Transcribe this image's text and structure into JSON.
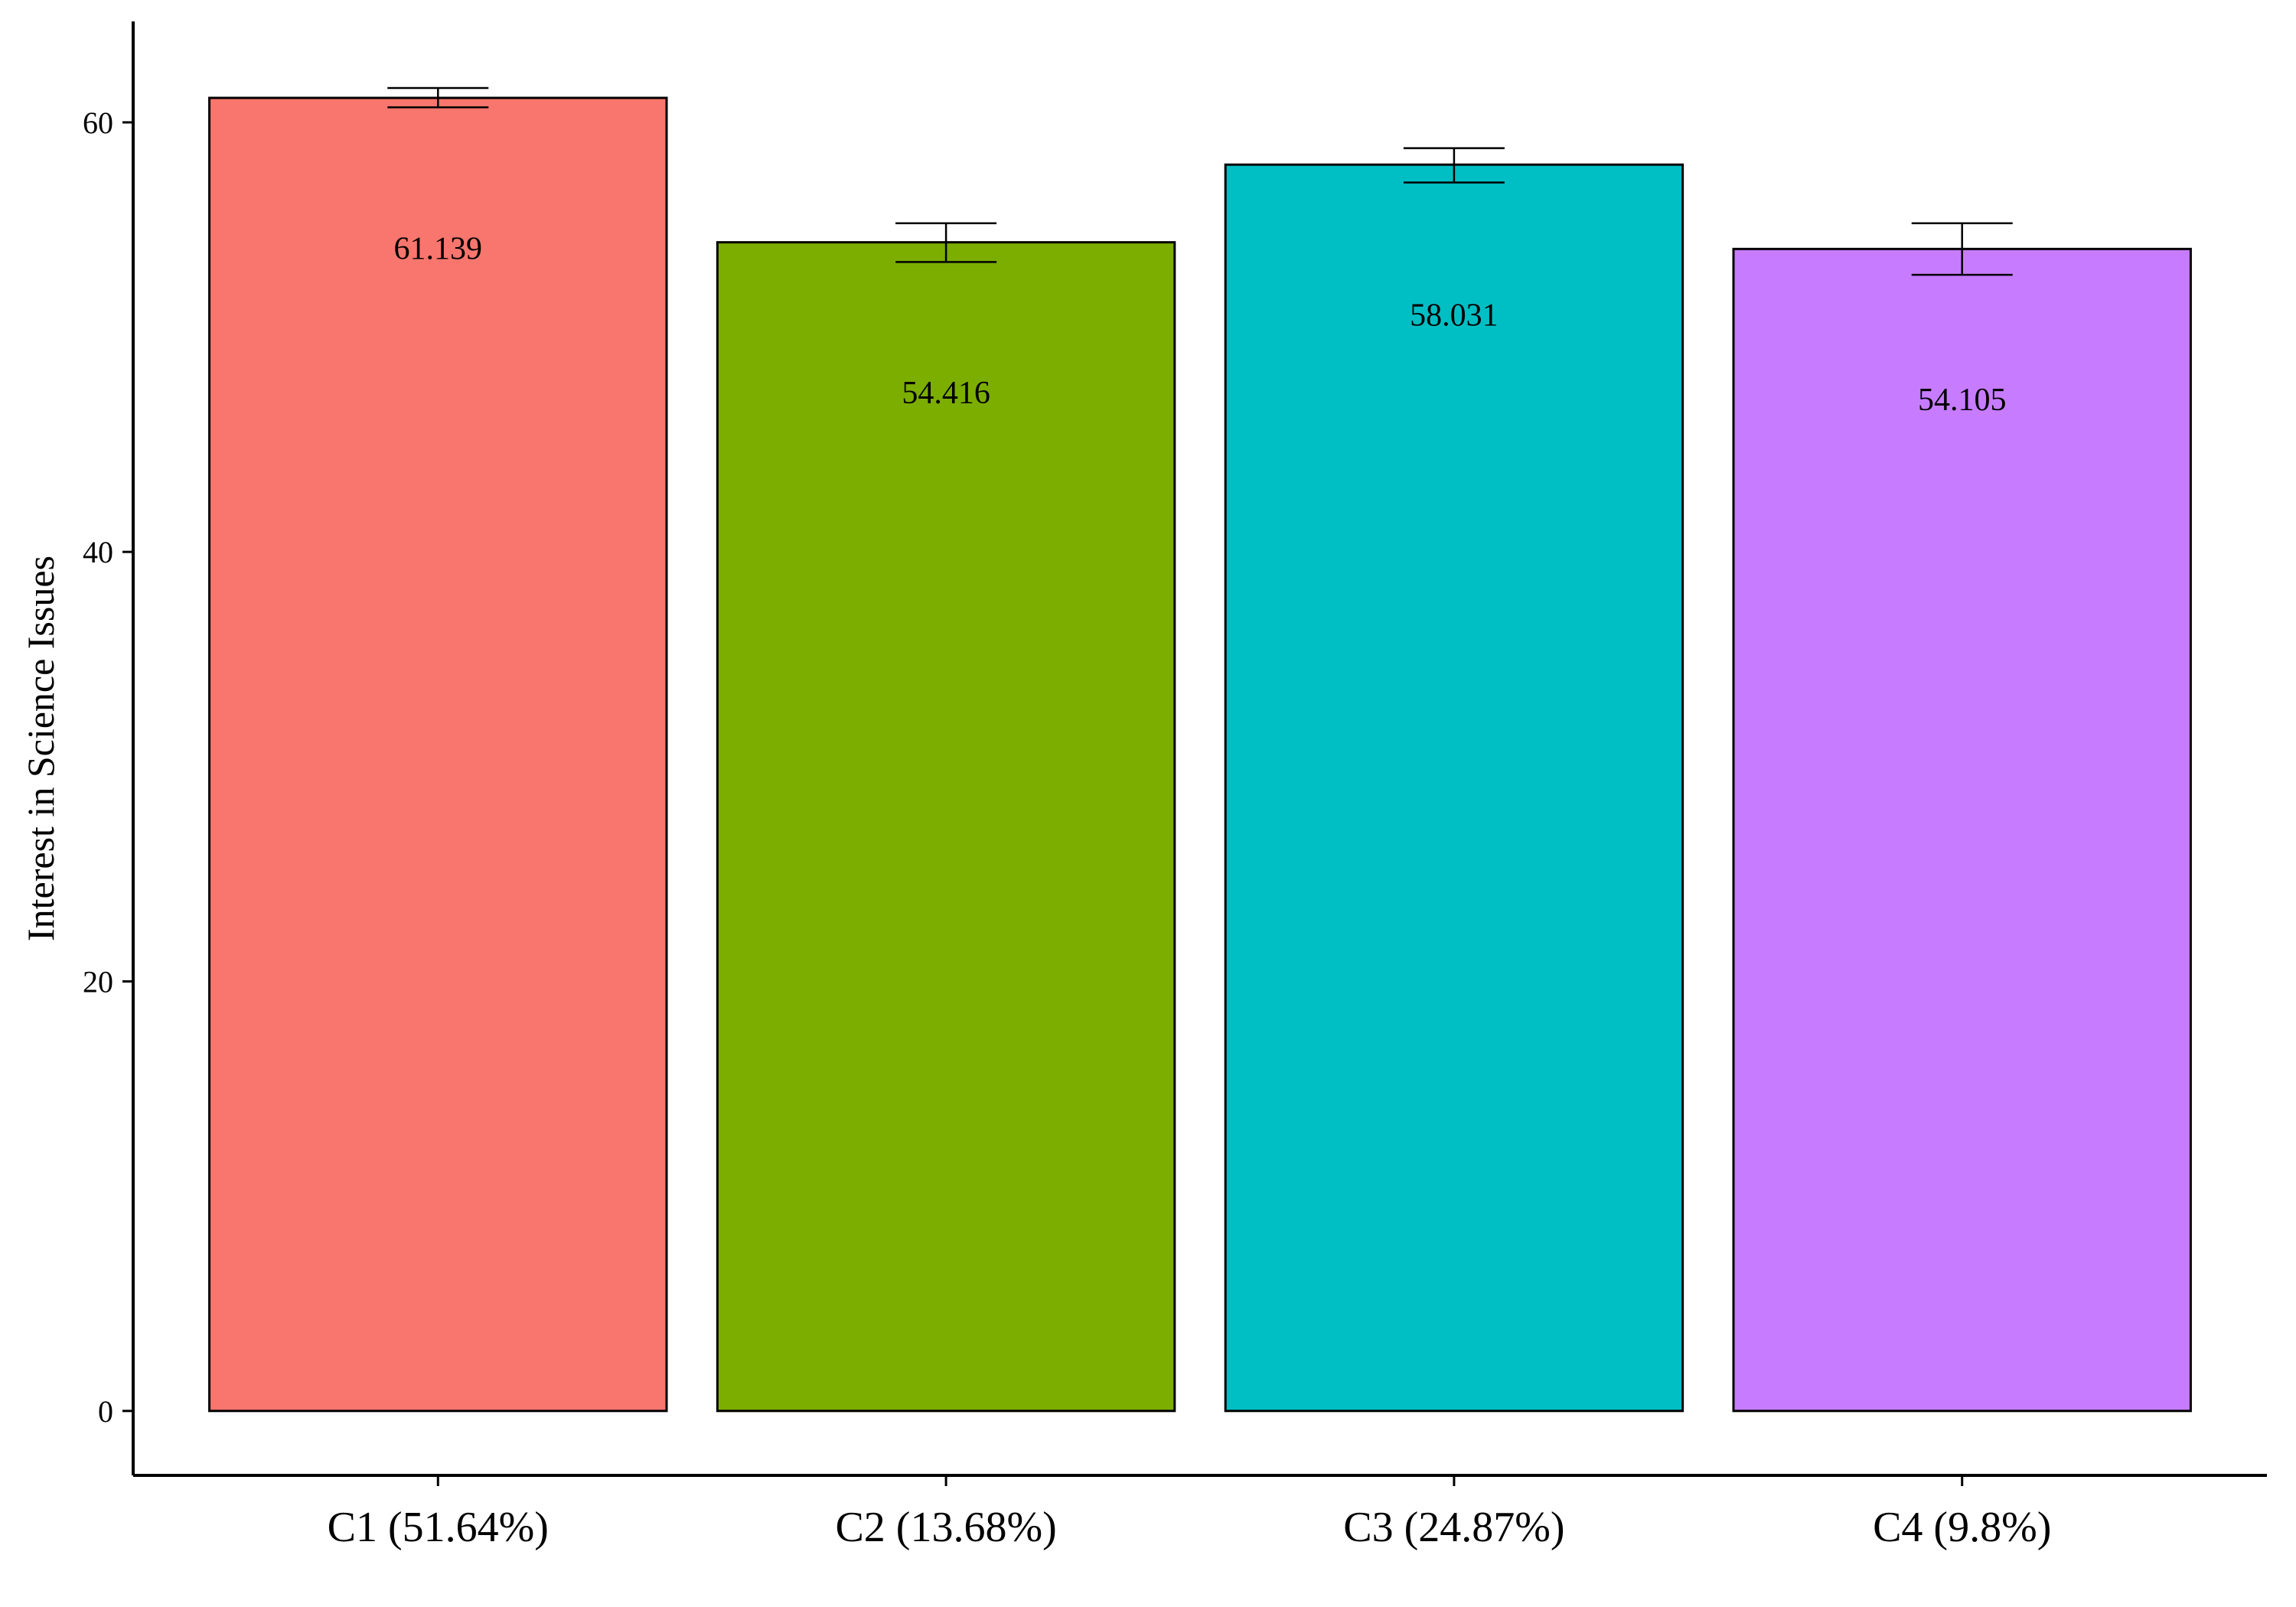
{
  "chart_data": {
    "type": "bar",
    "title": "",
    "xlabel": "",
    "ylabel": "Interest in Science Issues",
    "categories": [
      "C1 (51.64%)",
      "C2 (13.68%)",
      "C3 (24.87%)",
      "C4 (9.8%)"
    ],
    "values": [
      61.139,
      54.416,
      58.031,
      54.105
    ],
    "value_labels": [
      "61.139",
      "54.416",
      "58.031",
      "54.105"
    ],
    "error_bars": [
      {
        "low": 60.7,
        "high": 61.6
      },
      {
        "low": 53.5,
        "high": 55.3
      },
      {
        "low": 57.2,
        "high": 58.8
      },
      {
        "low": 52.9,
        "high": 55.3
      }
    ],
    "colors": [
      "#F8766D",
      "#7CAE00",
      "#00BFC4",
      "#C77CFF"
    ],
    "yticks": [
      0,
      20,
      40,
      60
    ],
    "ytick_labels": [
      "0",
      "20",
      "40",
      "60"
    ],
    "ylim": [
      -3,
      64.7
    ],
    "grid": false,
    "legend": "none"
  }
}
